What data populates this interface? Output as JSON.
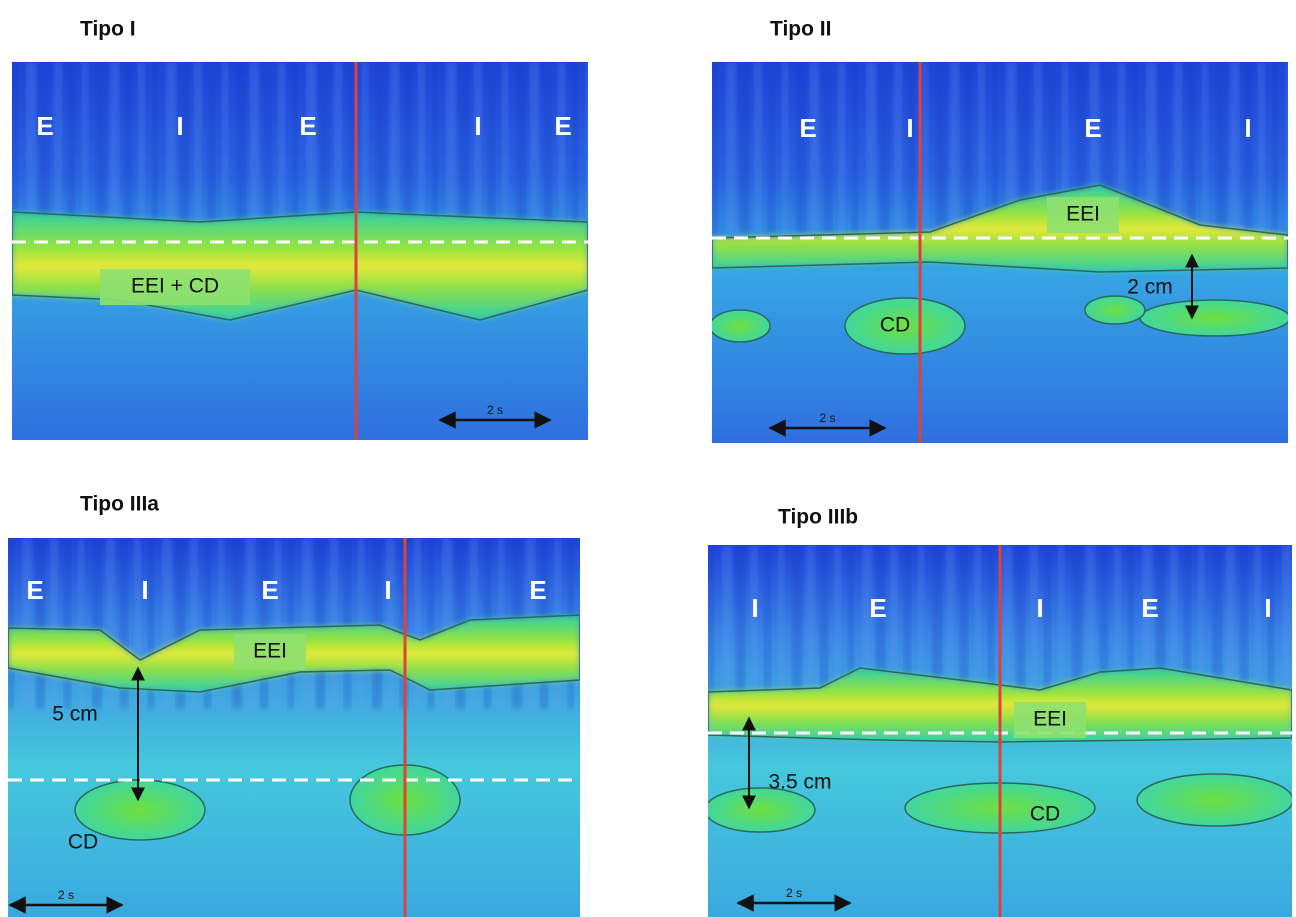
{
  "panels": [
    {
      "title": "Tipo I",
      "phases": [
        "E",
        "I",
        "E",
        "I",
        "E"
      ],
      "annotations": [
        "EEI + CD"
      ],
      "scale": "2 s"
    },
    {
      "title": "Tipo II",
      "phases": [
        "E",
        "I",
        "E",
        "I"
      ],
      "annotations": [
        "EEI",
        "2 cm",
        "CD"
      ],
      "scale": "2 s"
    },
    {
      "title": "Tipo IIIa",
      "phases": [
        "E",
        "I",
        "E",
        "I",
        "E"
      ],
      "annotations": [
        "EEI",
        "5 cm",
        "CD"
      ],
      "scale": "2 s"
    },
    {
      "title": "Tipo IIIb",
      "phases": [
        "I",
        "E",
        "I",
        "E",
        "I"
      ],
      "annotations": [
        "EEI",
        "3.5 cm",
        "CD"
      ],
      "scale": "2 s"
    }
  ]
}
